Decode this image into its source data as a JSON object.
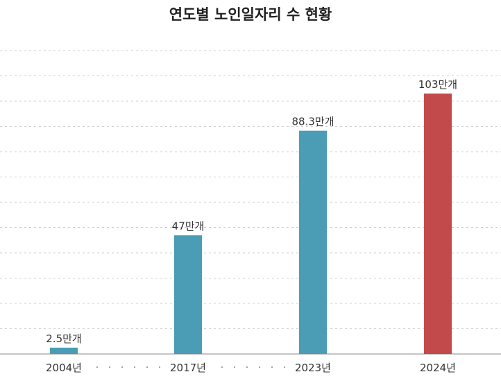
{
  "chart_data": {
    "type": "bar",
    "title": "연도별 노인일자리 수 현황",
    "categories": [
      "2004년",
      "2017년",
      "2023년",
      "2024년"
    ],
    "values": [
      2.5,
      47,
      88.3,
      103
    ],
    "value_labels": [
      "2.5만개",
      "47만개",
      "88.3만개",
      "103만개"
    ],
    "unit": "만개",
    "ylim": [
      0,
      120
    ],
    "grid": true,
    "legend": "none",
    "bar_colors": [
      "#4a9db5",
      "#4a9db5",
      "#4a9db5",
      "#c24a4a"
    ]
  }
}
